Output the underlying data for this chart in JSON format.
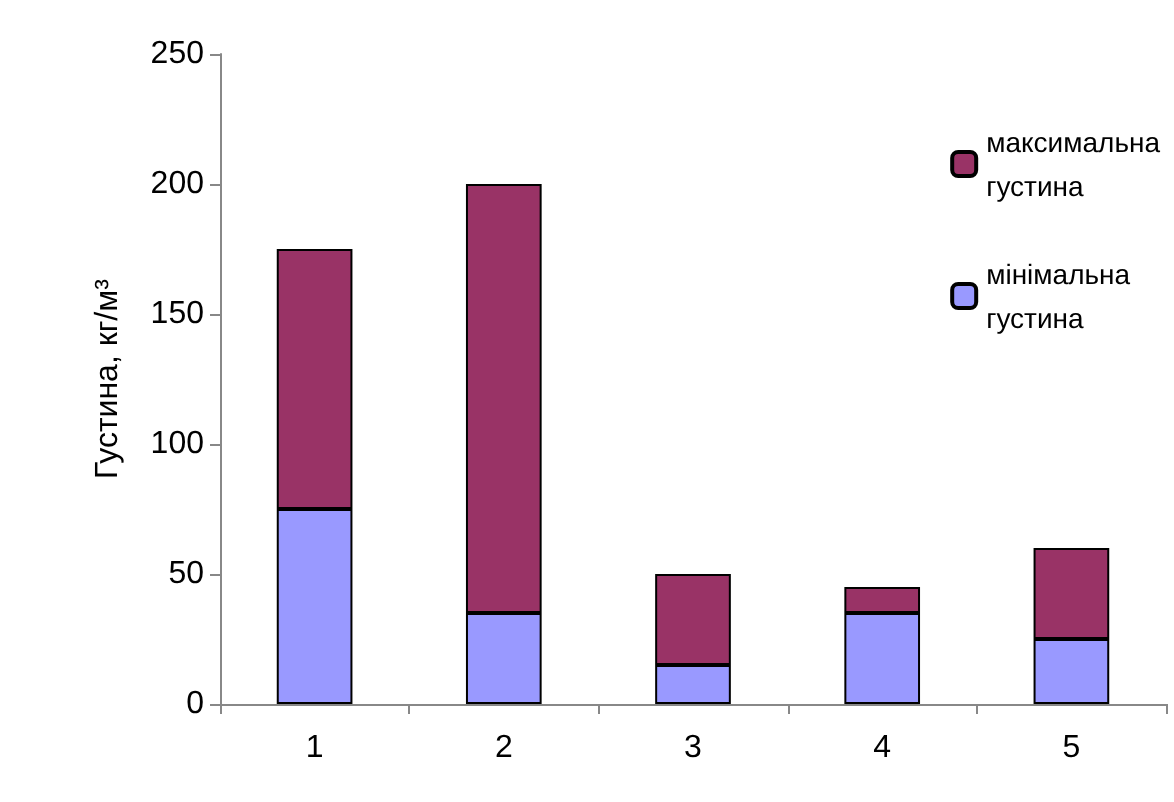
{
  "chart_data": {
    "type": "bar",
    "stacked": true,
    "ylabel": "Густина, кг/м³",
    "categories": [
      "1",
      "2",
      "3",
      "4",
      "5"
    ],
    "series": [
      {
        "name": "мінімальна густина",
        "color": "#9999ff",
        "values": [
          75,
          35,
          15,
          35,
          25
        ]
      },
      {
        "name": "максимальна густина",
        "color": "#993366",
        "values": [
          100,
          165,
          35,
          10,
          35
        ]
      }
    ],
    "ylim": [
      0,
      250
    ],
    "yticks": [
      0,
      50,
      100,
      150,
      200,
      250
    ],
    "grid": false,
    "legend": "top right"
  }
}
